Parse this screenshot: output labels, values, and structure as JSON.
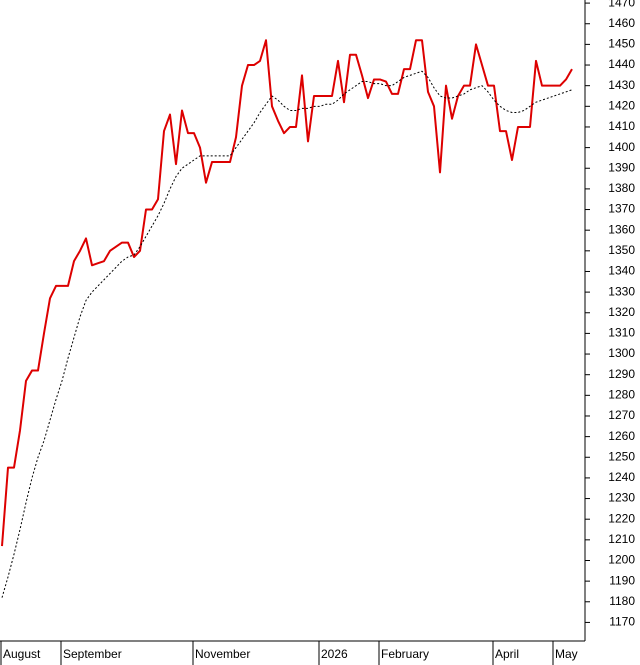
{
  "chart_data": {
    "type": "line",
    "categories": [
      "August",
      null,
      null,
      null,
      null,
      null,
      null,
      null,
      null,
      null,
      "September",
      null,
      null,
      null,
      null,
      null,
      null,
      null,
      null,
      null,
      null,
      null,
      null,
      null,
      null,
      null,
      null,
      null,
      null,
      null,
      null,
      null,
      "November",
      null,
      null,
      null,
      null,
      null,
      null,
      null,
      null,
      null,
      null,
      null,
      null,
      null,
      null,
      null,
      null,
      null,
      null,
      null,
      null,
      "2026",
      null,
      null,
      null,
      null,
      null,
      null,
      null,
      null,
      null,
      "February",
      null,
      null,
      null,
      null,
      null,
      null,
      null,
      null,
      null,
      null,
      null,
      null,
      null,
      null,
      null,
      null,
      null,
      null,
      "April",
      null,
      null,
      null,
      null,
      null,
      null,
      null,
      null,
      null,
      "May",
      null,
      null,
      null
    ],
    "series": [
      {
        "color": "#dd0000",
        "dash": "solid",
        "values": [
          1207,
          1245,
          1245,
          1263,
          1287,
          1292,
          1292,
          1310,
          1327,
          1333,
          1333,
          1333,
          1345,
          1350,
          1356,
          1343,
          1344,
          1345,
          1350,
          1352,
          1354,
          1354,
          1347,
          1350,
          1370,
          1370,
          1375,
          1408,
          1416,
          1392,
          1418,
          1407,
          1407,
          1400,
          1383,
          1393,
          1393,
          1393,
          1393,
          1405,
          1430,
          1440,
          1440,
          1442,
          1452,
          1420,
          1413,
          1407,
          1410,
          1410,
          1435,
          1403,
          1425,
          1425,
          1425,
          1425,
          1442,
          1422,
          1445,
          1445,
          1435,
          1424,
          1433,
          1433,
          1432,
          1426,
          1426,
          1438,
          1438,
          1452,
          1452,
          1427,
          1420,
          1388,
          1430,
          1414,
          1425,
          1430,
          1430,
          1450,
          1440,
          1430,
          1430,
          1408,
          1408,
          1394,
          1410,
          1410,
          1410,
          1442,
          1430,
          1430,
          1430,
          1430,
          1433,
          1438
        ]
      },
      {
        "color": "#000000",
        "dash": "dotted",
        "values": [
          1182,
          1192,
          1203,
          1215,
          1228,
          1240,
          1250,
          1258,
          1268,
          1278,
          1287,
          1298,
          1308,
          1318,
          1326,
          1330,
          1333,
          1336,
          1339,
          1342,
          1345,
          1347,
          1348,
          1352,
          1357,
          1362,
          1367,
          1373,
          1380,
          1386,
          1390,
          1392,
          1394,
          1396,
          1396,
          1396,
          1396,
          1396,
          1396,
          1400,
          1404,
          1408,
          1412,
          1417,
          1421,
          1425,
          1423,
          1420,
          1418,
          1418,
          1419,
          1419,
          1420,
          1420,
          1421,
          1421,
          1423,
          1426,
          1428,
          1430,
          1432,
          1432,
          1431,
          1431,
          1430,
          1430,
          1432,
          1434,
          1435,
          1436,
          1437,
          1434,
          1429,
          1425,
          1424,
          1424,
          1425,
          1426,
          1428,
          1429,
          1430,
          1427,
          1423,
          1420,
          1418,
          1417,
          1417,
          1418,
          1420,
          1422,
          1423,
          1424,
          1425,
          1426,
          1427,
          1428
        ]
      }
    ],
    "ylim": [
      1161,
      1471.5
    ],
    "yticks": [
      1170,
      1180,
      1190,
      1200,
      1210,
      1220,
      1230,
      1240,
      1250,
      1260,
      1270,
      1280,
      1290,
      1300,
      1310,
      1320,
      1330,
      1340,
      1350,
      1360,
      1370,
      1380,
      1390,
      1400,
      1410,
      1420,
      1430,
      1440,
      1450,
      1460,
      1470
    ],
    "y_axis_side": "right"
  }
}
